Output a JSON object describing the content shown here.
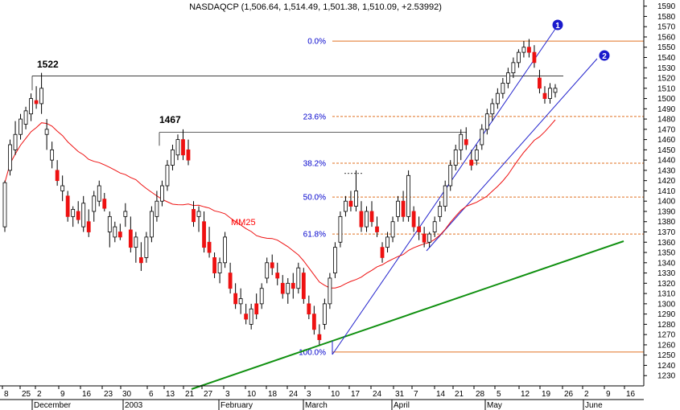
{
  "chart_data": {
    "type": "candlestick",
    "title": "NASDAQCP (1,506.64, 1,514.49, 1,501.38, 1,510.09, +2.53992)",
    "ylim": [
      1220,
      1596
    ],
    "y_ticks": [
      1230,
      1240,
      1250,
      1260,
      1270,
      1280,
      1290,
      1300,
      1310,
      1320,
      1330,
      1340,
      1350,
      1360,
      1370,
      1380,
      1390,
      1400,
      1410,
      1420,
      1430,
      1440,
      1450,
      1460,
      1470,
      1480,
      1490,
      1500,
      1510,
      1520,
      1530,
      1540,
      1550,
      1560,
      1570,
      1580,
      1590
    ],
    "x_day_labels": [
      "8",
      "25",
      "2",
      "9",
      "16",
      "23",
      "30",
      "6",
      "13",
      "21",
      "27",
      "3",
      "10",
      "18",
      "24",
      "3",
      "10",
      "17",
      "24",
      "31",
      "7",
      "14",
      "21",
      "28",
      "5",
      "12",
      "19",
      "26",
      "2",
      "9",
      "16"
    ],
    "x_month_labels": [
      "December",
      "2003",
      "February",
      "March",
      "April",
      "May",
      "June"
    ],
    "fibonacci": [
      {
        "label": "0.0%",
        "value": 1556
      },
      {
        "label": "23.6%",
        "value": 1482.5
      },
      {
        "label": "38.2%",
        "value": 1437
      },
      {
        "label": "50.0%",
        "value": 1404
      },
      {
        "label": "61.8%",
        "value": 1368
      },
      {
        "label": "100.0%",
        "value": 1253
      }
    ],
    "annotations": [
      {
        "text": "1522",
        "value": 1522
      },
      {
        "text": "1467",
        "value": 1467
      },
      {
        "text": "MM25"
      },
      {
        "text": "1"
      },
      {
        "text": "2"
      }
    ],
    "candles": [
      [
        1375,
        1420,
        1370,
        1418
      ],
      [
        1430,
        1460,
        1425,
        1455
      ],
      [
        1450,
        1478,
        1445,
        1465
      ],
      [
        1465,
        1485,
        1460,
        1480
      ],
      [
        1475,
        1492,
        1470,
        1488
      ],
      [
        1485,
        1505,
        1478,
        1500
      ],
      [
        1498,
        1512,
        1490,
        1495
      ],
      [
        1495,
        1525,
        1485,
        1510
      ],
      [
        1465,
        1480,
        1450,
        1470
      ],
      [
        1440,
        1458,
        1432,
        1450
      ],
      [
        1430,
        1440,
        1415,
        1420
      ],
      [
        1410,
        1425,
        1400,
        1415
      ],
      [
        1405,
        1410,
        1380,
        1385
      ],
      [
        1385,
        1395,
        1375,
        1392
      ],
      [
        1390,
        1400,
        1378,
        1382
      ],
      [
        1375,
        1405,
        1370,
        1398
      ],
      [
        1380,
        1392,
        1365,
        1370
      ],
      [
        1390,
        1410,
        1380,
        1405
      ],
      [
        1400,
        1420,
        1395,
        1415
      ],
      [
        1402,
        1408,
        1390,
        1393
      ],
      [
        1370,
        1390,
        1355,
        1385
      ],
      [
        1365,
        1380,
        1360,
        1375
      ],
      [
        1370,
        1378,
        1362,
        1365
      ],
      [
        1385,
        1398,
        1375,
        1390
      ],
      [
        1372,
        1385,
        1350,
        1355
      ],
      [
        1355,
        1370,
        1340,
        1365
      ],
      [
        1345,
        1360,
        1332,
        1340
      ],
      [
        1345,
        1370,
        1340,
        1365
      ],
      [
        1365,
        1395,
        1360,
        1390
      ],
      [
        1385,
        1410,
        1380,
        1400
      ],
      [
        1400,
        1420,
        1395,
        1415
      ],
      [
        1415,
        1440,
        1410,
        1435
      ],
      [
        1435,
        1455,
        1430,
        1450
      ],
      [
        1445,
        1465,
        1440,
        1460
      ],
      [
        1460,
        1470,
        1440,
        1445
      ],
      [
        1450,
        1460,
        1435,
        1440
      ],
      [
        1392,
        1400,
        1375,
        1380
      ],
      [
        1385,
        1395,
        1370,
        1390
      ],
      [
        1380,
        1390,
        1350,
        1355
      ],
      [
        1360,
        1375,
        1345,
        1350
      ],
      [
        1345,
        1350,
        1325,
        1330
      ],
      [
        1330,
        1345,
        1320,
        1340
      ],
      [
        1340,
        1370,
        1335,
        1365
      ],
      [
        1330,
        1340,
        1310,
        1315
      ],
      [
        1310,
        1320,
        1295,
        1300
      ],
      [
        1300,
        1315,
        1290,
        1305
      ],
      [
        1290,
        1300,
        1280,
        1285
      ],
      [
        1280,
        1300,
        1275,
        1295
      ],
      [
        1300,
        1310,
        1285,
        1290
      ],
      [
        1300,
        1320,
        1295,
        1315
      ],
      [
        1325,
        1345,
        1320,
        1340
      ],
      [
        1340,
        1348,
        1328,
        1335
      ],
      [
        1330,
        1340,
        1318,
        1325
      ],
      [
        1320,
        1328,
        1305,
        1310
      ],
      [
        1310,
        1325,
        1300,
        1320
      ],
      [
        1320,
        1330,
        1305,
        1315
      ],
      [
        1315,
        1340,
        1310,
        1335
      ],
      [
        1330,
        1335,
        1300,
        1305
      ],
      [
        1300,
        1308,
        1285,
        1290
      ],
      [
        1290,
        1298,
        1270,
        1275
      ],
      [
        1270,
        1280,
        1260,
        1265
      ],
      [
        1280,
        1305,
        1275,
        1300
      ],
      [
        1300,
        1330,
        1295,
        1325
      ],
      [
        1330,
        1360,
        1325,
        1355
      ],
      [
        1360,
        1390,
        1355,
        1385
      ],
      [
        1390,
        1405,
        1385,
        1400
      ],
      [
        1400,
        1410,
        1390,
        1395
      ],
      [
        1395,
        1430,
        1390,
        1410
      ],
      [
        1390,
        1400,
        1370,
        1375
      ],
      [
        1375,
        1395,
        1370,
        1390
      ],
      [
        1390,
        1400,
        1375,
        1380
      ],
      [
        1375,
        1385,
        1365,
        1370
      ],
      [
        1355,
        1360,
        1340,
        1345
      ],
      [
        1355,
        1370,
        1350,
        1365
      ],
      [
        1365,
        1385,
        1360,
        1380
      ],
      [
        1385,
        1405,
        1380,
        1400
      ],
      [
        1400,
        1410,
        1380,
        1385
      ],
      [
        1385,
        1430,
        1380,
        1425
      ],
      [
        1390,
        1395,
        1370,
        1375
      ],
      [
        1375,
        1385,
        1362,
        1370
      ],
      [
        1368,
        1375,
        1355,
        1360
      ],
      [
        1360,
        1370,
        1355,
        1368
      ],
      [
        1370,
        1385,
        1365,
        1380
      ],
      [
        1385,
        1400,
        1380,
        1395
      ],
      [
        1395,
        1420,
        1390,
        1415
      ],
      [
        1415,
        1440,
        1410,
        1435
      ],
      [
        1435,
        1455,
        1430,
        1450
      ],
      [
        1450,
        1470,
        1440,
        1465
      ],
      [
        1460,
        1472,
        1450,
        1455
      ],
      [
        1440,
        1450,
        1430,
        1435
      ],
      [
        1440,
        1455,
        1435,
        1450
      ],
      [
        1455,
        1475,
        1450,
        1470
      ],
      [
        1470,
        1490,
        1465,
        1485
      ],
      [
        1485,
        1500,
        1478,
        1495
      ],
      [
        1495,
        1510,
        1490,
        1505
      ],
      [
        1505,
        1520,
        1500,
        1515
      ],
      [
        1515,
        1530,
        1510,
        1525
      ],
      [
        1525,
        1540,
        1520,
        1535
      ],
      [
        1535,
        1548,
        1530,
        1545
      ],
      [
        1545,
        1556,
        1540,
        1550
      ],
      [
        1550,
        1558,
        1540,
        1545
      ],
      [
        1545,
        1552,
        1530,
        1535
      ],
      [
        1520,
        1528,
        1505,
        1510
      ],
      [
        1505,
        1512,
        1495,
        1500
      ],
      [
        1500,
        1515,
        1495,
        1510
      ],
      [
        1506,
        1514,
        1501,
        1510
      ]
    ]
  }
}
